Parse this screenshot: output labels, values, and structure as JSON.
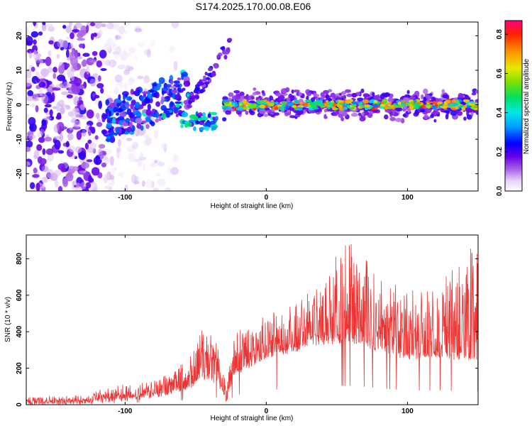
{
  "title": "S174.2025.170.00.08.E06",
  "colors": {
    "snr_line": "#ee3333",
    "axis": "#000000"
  },
  "chart_data": [
    {
      "type": "heatmap",
      "xlabel": "Height of straight line (km)",
      "ylabel": "Frequency (Hz)",
      "xlim": [
        -170,
        150
      ],
      "ylim": [
        -25,
        24
      ],
      "xticks": [
        -100,
        0,
        100
      ],
      "yticks": [
        -20,
        -10,
        0,
        10,
        20
      ],
      "grid": false,
      "colorbar": {
        "label": "Normalized spectral amplitude",
        "range": [
          0.0,
          0.87
        ],
        "ticks": [
          0.0,
          0.2,
          0.4,
          0.6,
          0.8
        ],
        "colormap": "rainbow (violet to red)"
      },
      "features": [
        {
          "x_range": [
            -170,
            -115
          ],
          "freq_range": [
            -25,
            24
          ],
          "amplitude": 0.15
        },
        {
          "x_range": [
            -115,
            -55
          ],
          "freq_center_start": -5,
          "freq_center_end": 4,
          "amplitude": 0.25
        },
        {
          "x_range": [
            -55,
            -25
          ],
          "freq_center_start": 0,
          "freq_center_end": 18,
          "amplitude": 0.2
        },
        {
          "x_range": [
            -60,
            -35
          ],
          "freq_center": -5,
          "amplitude": 0.45
        },
        {
          "x_range": [
            -30,
            150
          ],
          "freq_center": 0,
          "amplitude": 0.7
        }
      ]
    },
    {
      "type": "line",
      "xlabel": "Height of straight line (km)",
      "ylabel": "SNR (10 * v/v)",
      "xlim": [
        -170,
        150
      ],
      "ylim": [
        0,
        930
      ],
      "xticks": [
        -100,
        0,
        100
      ],
      "yticks": [
        0,
        200,
        400,
        600,
        800
      ],
      "grid": false,
      "envelope": {
        "x": [
          -170,
          -130,
          -110,
          -90,
          -70,
          -55,
          -45,
          -35,
          -28,
          -22,
          -15,
          0,
          20,
          40,
          60,
          80,
          100,
          120,
          150
        ],
        "baseline": [
          10,
          12,
          25,
          40,
          60,
          90,
          150,
          130,
          25,
          180,
          200,
          260,
          300,
          340,
          350,
          300,
          260,
          260,
          250
        ],
        "peak": [
          35,
          40,
          90,
          110,
          160,
          260,
          410,
          350,
          100,
          430,
          400,
          500,
          560,
          700,
          920,
          700,
          620,
          640,
          900
        ]
      }
    }
  ]
}
